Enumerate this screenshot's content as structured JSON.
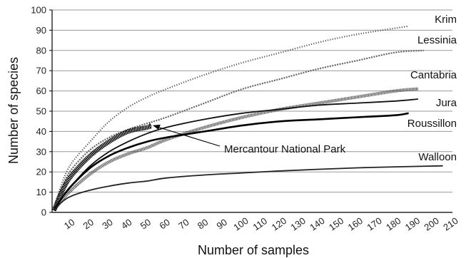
{
  "chart_data": {
    "type": "line",
    "xlabel": "Number of samples",
    "ylabel": "Number of species",
    "xlim": [
      0,
      210
    ],
    "ylim": [
      0,
      100
    ],
    "x_ticks": [
      10,
      20,
      30,
      40,
      50,
      60,
      70,
      80,
      90,
      100,
      110,
      120,
      130,
      140,
      150,
      160,
      170,
      180,
      190,
      200,
      210
    ],
    "y_ticks": [
      0,
      10,
      20,
      30,
      40,
      50,
      60,
      70,
      80,
      90,
      100
    ],
    "grid": "horizontal",
    "legend": "inline labels at line ends",
    "series": [
      {
        "name": "Krim",
        "color": "#555555",
        "style": "dotted",
        "x": [
          1,
          5,
          10,
          20,
          30,
          40,
          50,
          60,
          80,
          100,
          120,
          140,
          160,
          187
        ],
        "y": [
          2,
          14,
          24,
          35,
          45,
          52,
          57,
          61,
          68,
          74,
          79,
          84,
          88,
          92
        ]
      },
      {
        "name": "Lessinia",
        "color": "#666666",
        "style": "dashed",
        "x": [
          1,
          5,
          10,
          20,
          30,
          40,
          50,
          60,
          80,
          100,
          120,
          140,
          160,
          180,
          195
        ],
        "y": [
          2,
          12,
          21,
          31,
          37,
          41,
          44,
          47,
          54,
          61,
          66,
          71,
          75,
          79,
          80
        ]
      },
      {
        "name": "Cantabria",
        "color": "#333333",
        "style": "hatched",
        "x": [
          1,
          5,
          10,
          20,
          30,
          40,
          50,
          60,
          80,
          100,
          120,
          140,
          160,
          180,
          192
        ],
        "y": [
          1,
          6,
          11,
          19,
          25,
          29,
          32,
          36,
          42,
          47,
          51,
          54,
          57,
          60,
          61
        ]
      },
      {
        "name": "Jura",
        "color": "#111111",
        "style": "solid",
        "x": [
          1,
          5,
          10,
          20,
          30,
          40,
          50,
          60,
          80,
          100,
          120,
          140,
          160,
          180,
          192
        ],
        "y": [
          1,
          7,
          13,
          23,
          30,
          35,
          39,
          42,
          46,
          49,
          51,
          53,
          54,
          55,
          56
        ]
      },
      {
        "name": "Roussillon",
        "color": "#000000",
        "style": "solid-thick",
        "x": [
          1,
          5,
          10,
          20,
          30,
          40,
          50,
          60,
          80,
          100,
          120,
          140,
          160,
          180,
          187
        ],
        "y": [
          1,
          7,
          13,
          22,
          28,
          32,
          35,
          37,
          40,
          43,
          45,
          46,
          47,
          48,
          49
        ]
      },
      {
        "name": "Mercantour National Park",
        "color": "#000000",
        "style": "thick-short",
        "x": [
          1,
          5,
          10,
          20,
          30,
          40,
          50,
          52
        ],
        "y": [
          1,
          10,
          18,
          28,
          35,
          40,
          42,
          43
        ]
      },
      {
        "name": "Walloon",
        "color": "#222222",
        "style": "solid",
        "x": [
          1,
          5,
          10,
          20,
          30,
          40,
          50,
          60,
          80,
          100,
          120,
          140,
          160,
          180,
          205
        ],
        "y": [
          1,
          5,
          8,
          11,
          13,
          14.5,
          15.5,
          17,
          18.5,
          19.5,
          20.5,
          21.3,
          22,
          22.5,
          23
        ]
      }
    ],
    "annotations": [
      {
        "text": "Mercantour National Park",
        "target_x": 52,
        "target_y": 43
      }
    ]
  }
}
